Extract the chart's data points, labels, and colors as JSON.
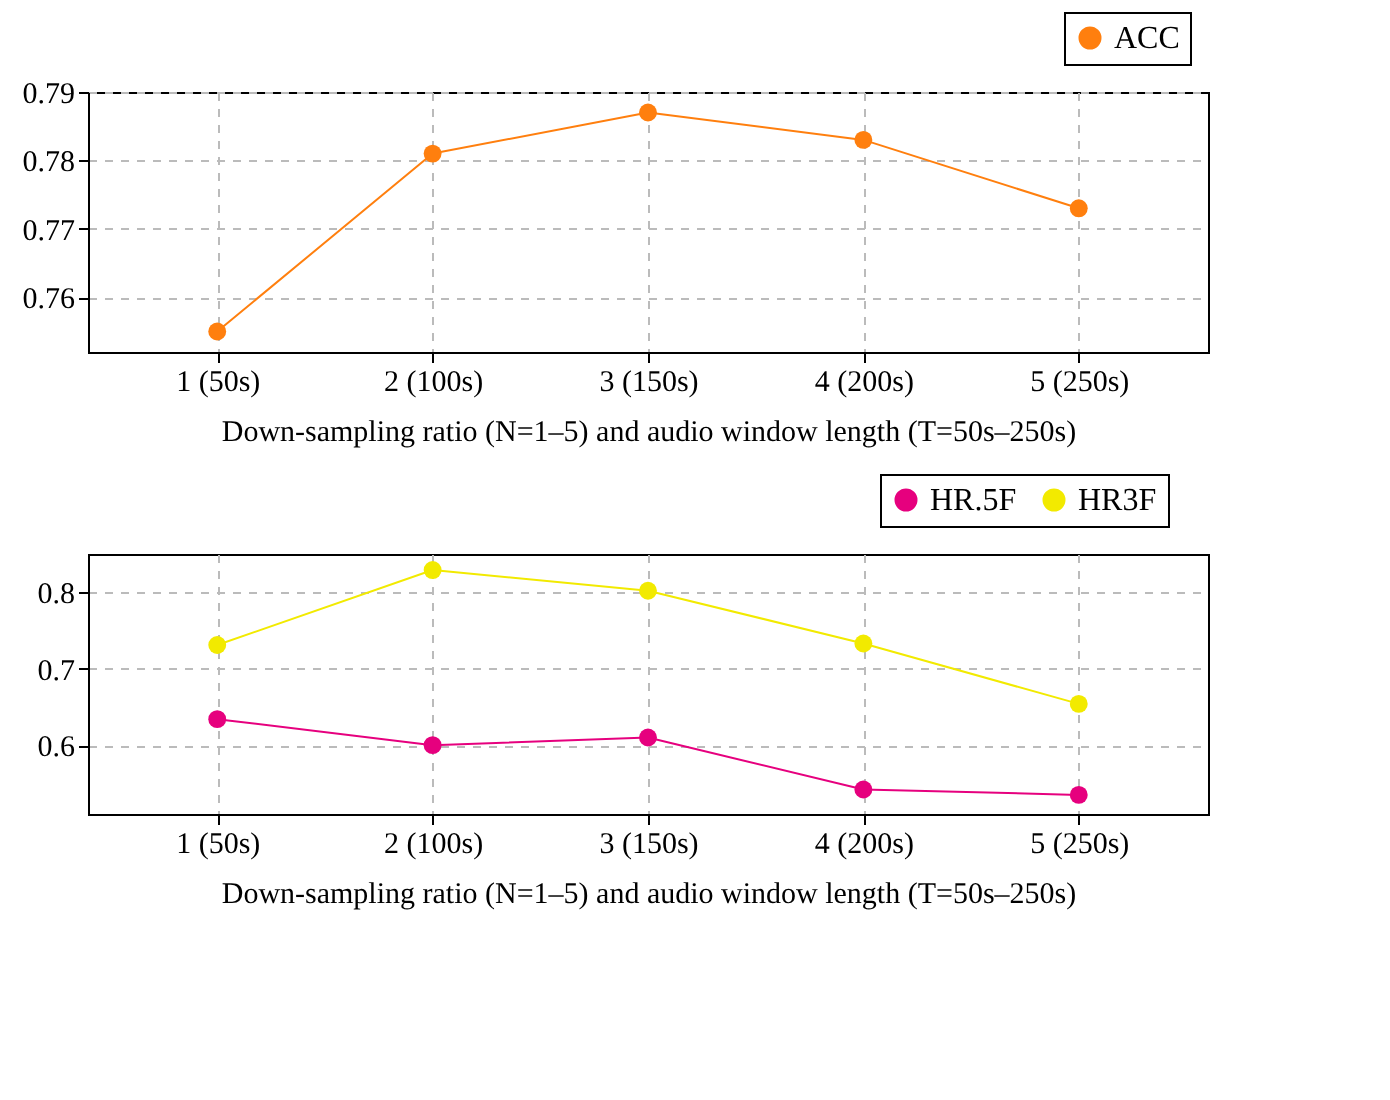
{
  "chart_data": [
    {
      "type": "line",
      "categories": [
        "1 (50s)",
        "2 (100s)",
        "3 (150s)",
        "4 (200s)",
        "5 (250s)"
      ],
      "xlabel": "Down-sampling ratio (N=1–5) and audio window length (T=50s–250s)",
      "ylim": [
        0.752,
        0.79
      ],
      "yticks": [
        0.76,
        0.77,
        0.78,
        0.79
      ],
      "grid": true,
      "legend": "top right",
      "marker": "circle",
      "line_style": "solid",
      "series": [
        {
          "name": "ACC",
          "color": "#ff7f0e",
          "values": [
            0.755,
            0.781,
            0.787,
            0.783,
            0.773
          ]
        }
      ]
    },
    {
      "type": "line",
      "categories": [
        "1 (50s)",
        "2 (100s)",
        "3 (150s)",
        "4 (200s)",
        "5 (250s)"
      ],
      "xlabel": "Down-sampling ratio (N=1–5) and audio window length (T=50s–250s)",
      "ylim": [
        0.51,
        0.85
      ],
      "yticks": [
        0.6,
        0.7,
        0.8
      ],
      "grid": true,
      "legend": "top right",
      "marker": "circle",
      "line_style": "solid",
      "series": [
        {
          "name": "HR.5F",
          "color": "#e6007e",
          "values": [
            0.634,
            0.6,
            0.61,
            0.542,
            0.535
          ]
        },
        {
          "name": "HR3F",
          "color": "#f2ea00",
          "values": [
            0.731,
            0.829,
            0.802,
            0.733,
            0.654
          ]
        }
      ]
    }
  ]
}
